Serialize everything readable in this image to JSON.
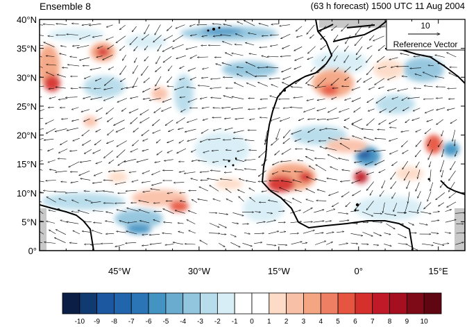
{
  "title_left": "Ensemble 8",
  "title_right": "(63 h forecast) 1500 UTC 11 Aug 2004",
  "map": {
    "lat_labels": [
      "40°N",
      "35°N",
      "30°N",
      "25°N",
      "20°N",
      "15°N",
      "10°N",
      "5°N",
      "0°"
    ],
    "lat_values": [
      40,
      35,
      30,
      25,
      20,
      15,
      10,
      5,
      0
    ],
    "lon_labels": [
      "45°W",
      "30°W",
      "15°W",
      "0°",
      "15°E"
    ],
    "lon_values": [
      -45,
      -30,
      -15,
      0,
      15
    ],
    "lon_range": [
      -60,
      20
    ],
    "lat_range": [
      0,
      40
    ]
  },
  "reference_vector": {
    "magnitude": "10",
    "label": "Reference Vector"
  },
  "colorbar": {
    "labels": [
      "-10",
      "-9",
      "-8",
      "-7",
      "-6",
      "-5",
      "-4",
      "-3",
      "-2",
      "-1",
      "0",
      "1",
      "2",
      "3",
      "4",
      "5",
      "6",
      "7",
      "8",
      "9",
      "10"
    ],
    "colors": [
      "#0b1e45",
      "#0f3a72",
      "#1b58a0",
      "#2166ac",
      "#2b75b7",
      "#4393c3",
      "#6aacd0",
      "#92c5de",
      "#b7dceb",
      "#d8eef6",
      "#ffffff",
      "#ffffff",
      "#fddbc7",
      "#f9c0a8",
      "#f4a582",
      "#ef7f62",
      "#e6553f",
      "#d6302d",
      "#c01a28",
      "#a50f20",
      "#7f0a17",
      "#5f0612"
    ]
  }
}
